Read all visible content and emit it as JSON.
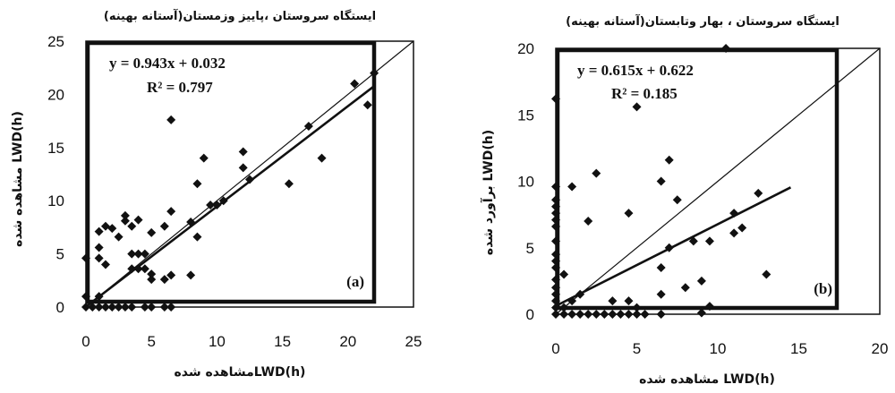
{
  "chart_data": [
    {
      "type": "scatter",
      "title": "ایستگاه سروستان ،پاییز وزمستان(آستانه بهینه)",
      "xlabel": "LWD(h)مشاهده شده",
      "ylabel": "LWD(h) مشاهده شده",
      "xlim": [
        0,
        25
      ],
      "ylim": [
        0,
        25
      ],
      "xticks": [
        "0",
        "5",
        "10",
        "15",
        "20",
        "25"
      ],
      "yticks": [
        "0",
        "5",
        "10",
        "15",
        "20",
        "25"
      ],
      "equation": "y = 0.943x + 0.032",
      "r2": "R² = 0.797",
      "panel_label": "(a)",
      "trendline": {
        "slope": 0.943,
        "intercept": 0.032,
        "x_range": [
          0,
          22
        ]
      },
      "reference_line": {
        "slope": 1,
        "intercept": 0
      },
      "grid": false,
      "points": [
        [
          0,
          0
        ],
        [
          0.5,
          0
        ],
        [
          1,
          0
        ],
        [
          1.5,
          0
        ],
        [
          2,
          0
        ],
        [
          2.5,
          0
        ],
        [
          3,
          0
        ],
        [
          3.5,
          0
        ],
        [
          4.5,
          0
        ],
        [
          5,
          0
        ],
        [
          6,
          0
        ],
        [
          6.5,
          0
        ],
        [
          0,
          1
        ],
        [
          0,
          4.6
        ],
        [
          1,
          1
        ],
        [
          1,
          4.6
        ],
        [
          1,
          5.6
        ],
        [
          1,
          7.1
        ],
        [
          1.5,
          7.6
        ],
        [
          1.5,
          4
        ],
        [
          2,
          7.4
        ],
        [
          2.5,
          6.6
        ],
        [
          3,
          8.1
        ],
        [
          3,
          8.6
        ],
        [
          3.5,
          7.6
        ],
        [
          4,
          8.2
        ],
        [
          3.5,
          5
        ],
        [
          4,
          5
        ],
        [
          4.5,
          5
        ],
        [
          3.5,
          3.6
        ],
        [
          4,
          3.6
        ],
        [
          4.5,
          3.6
        ],
        [
          5,
          2.6
        ],
        [
          5,
          3.1
        ],
        [
          5,
          7
        ],
        [
          6,
          7.6
        ],
        [
          6,
          2.6
        ],
        [
          6.5,
          17.6
        ],
        [
          6.5,
          9
        ],
        [
          6.5,
          3
        ],
        [
          8,
          8
        ],
        [
          8,
          3
        ],
        [
          8.5,
          11.6
        ],
        [
          8.5,
          6.6
        ],
        [
          9,
          14
        ],
        [
          9.5,
          9.6
        ],
        [
          10,
          9.6
        ],
        [
          10.5,
          10
        ],
        [
          12,
          14.6
        ],
        [
          12,
          13.1
        ],
        [
          12.5,
          12
        ],
        [
          15.5,
          11.6
        ],
        [
          17,
          17
        ],
        [
          18,
          14
        ],
        [
          20.5,
          21
        ],
        [
          21.5,
          19
        ],
        [
          22,
          22
        ]
      ]
    },
    {
      "type": "scatter",
      "title": "ایستگاه سروستان ، بهار وتابستان(آستانه بهینه)",
      "xlabel": "LWD(h) مشاهده شده",
      "ylabel": "LWD(h) برآورد شده",
      "xlim": [
        0,
        20
      ],
      "ylim": [
        0,
        20
      ],
      "xticks": [
        "0",
        "5",
        "10",
        "15",
        "20"
      ],
      "yticks": [
        "0",
        "5",
        "10",
        "15",
        "20"
      ],
      "equation": "y = 0.615x + 0.622",
      "r2": "R² = 0.185",
      "panel_label": "(b)",
      "trendline": {
        "slope": 0.615,
        "intercept": 0.622,
        "x_range": [
          0,
          14.5
        ]
      },
      "reference_line": {
        "slope": 1,
        "intercept": 0
      },
      "grid": false,
      "points": [
        [
          0,
          16.2
        ],
        [
          0,
          9.6
        ],
        [
          0,
          8.6
        ],
        [
          0,
          8.1
        ],
        [
          0,
          7.6
        ],
        [
          0,
          7.1
        ],
        [
          0,
          6.6
        ],
        [
          0,
          5.5
        ],
        [
          0,
          4.5
        ],
        [
          0,
          4
        ],
        [
          0,
          3.5
        ],
        [
          0,
          2.6
        ],
        [
          0,
          2
        ],
        [
          0,
          1.5
        ],
        [
          0,
          1
        ],
        [
          0,
          0.5
        ],
        [
          0,
          0
        ],
        [
          0.5,
          0
        ],
        [
          1,
          0
        ],
        [
          1.5,
          0
        ],
        [
          2,
          0
        ],
        [
          2.5,
          0
        ],
        [
          3,
          0
        ],
        [
          3.5,
          0
        ],
        [
          4,
          0
        ],
        [
          4.5,
          0
        ],
        [
          5,
          0
        ],
        [
          5.5,
          0
        ],
        [
          6.5,
          0
        ],
        [
          0.5,
          3
        ],
        [
          0.5,
          0.5
        ],
        [
          1,
          1
        ],
        [
          1,
          9.6
        ],
        [
          1.5,
          1.5
        ],
        [
          2,
          7
        ],
        [
          2.5,
          10.6
        ],
        [
          3.5,
          1
        ],
        [
          4.5,
          7.6
        ],
        [
          4.5,
          1
        ],
        [
          5,
          15.6
        ],
        [
          5,
          0.5
        ],
        [
          6.5,
          10
        ],
        [
          6.5,
          3.5
        ],
        [
          6.5,
          1.5
        ],
        [
          7,
          11.6
        ],
        [
          7,
          5
        ],
        [
          7.5,
          8.6
        ],
        [
          8,
          2
        ],
        [
          8.5,
          5.5
        ],
        [
          9,
          2.5
        ],
        [
          9,
          0.1
        ],
        [
          9.5,
          5.5
        ],
        [
          9.5,
          0.6
        ],
        [
          10.5,
          20
        ],
        [
          11,
          7.6
        ],
        [
          11,
          6.1
        ],
        [
          11.5,
          6.5
        ],
        [
          12.5,
          9.1
        ],
        [
          13,
          3
        ]
      ]
    }
  ]
}
